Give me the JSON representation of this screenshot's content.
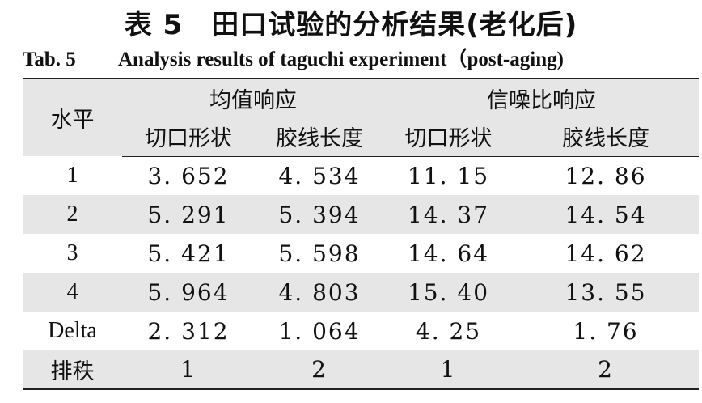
{
  "title_cn": "表 5　田口试验的分析结果(老化后)",
  "title_en_no": "Tab. 5",
  "title_en": "Analysis results of taguchi experiment（post-aging)",
  "table": {
    "header_level": "水平",
    "group_mean": "均值响应",
    "group_sn": "信噪比响应",
    "sub_headers": [
      "切口形状",
      "胶线长度",
      "切口形状",
      "胶线长度"
    ],
    "rows": [
      {
        "label": "1",
        "values": [
          "3. 652",
          "4. 534",
          "11. 15",
          "12. 86"
        ]
      },
      {
        "label": "2",
        "values": [
          "5. 291",
          "5. 394",
          "14. 37",
          "14. 54"
        ]
      },
      {
        "label": "3",
        "values": [
          "5. 421",
          "5. 598",
          "14. 64",
          "14. 62"
        ]
      },
      {
        "label": "4",
        "values": [
          "5. 964",
          "4. 803",
          "15. 40",
          "13. 55"
        ]
      },
      {
        "label": "Delta",
        "values": [
          "2. 312",
          "1. 064",
          "4. 25",
          "1. 76"
        ]
      },
      {
        "label": "排秩",
        "values": [
          "1",
          "2",
          "1",
          "2"
        ]
      }
    ]
  }
}
